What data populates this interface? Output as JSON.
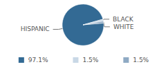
{
  "chart_data": {
    "type": "pie",
    "categories": [
      "HISPANIC",
      "BLACK",
      "WHITE"
    ],
    "values": [
      97.1,
      1.5,
      1.5
    ],
    "value_labels": [
      "97.1%",
      "1.5%",
      "1.5%"
    ],
    "colors": [
      "#336a94",
      "#c9d8e6",
      "#8faac4"
    ],
    "legend": "bottom"
  }
}
